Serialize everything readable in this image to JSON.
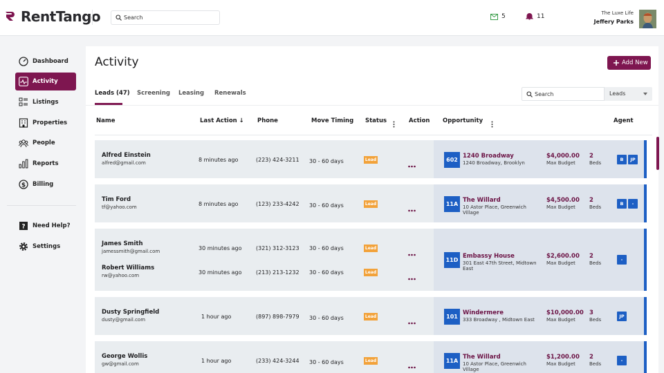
{
  "header": {
    "logo": "RentTango",
    "search_placeholder": "Search",
    "messages_count": 5,
    "notifications_count": 11,
    "company": "The Luxe Life",
    "user": "Jeffery Parks"
  },
  "sidebar": {
    "items": [
      "Dashboard",
      "Activity",
      "Listings",
      "Properties",
      "People",
      "Reports",
      "Billing"
    ],
    "help": "Need Help?",
    "settings": "Settings"
  },
  "page": {
    "title": "Activity",
    "add_button": "Add New"
  },
  "tabs": [
    "Leads (47)",
    "Screening",
    "Leasing",
    "Renewals"
  ],
  "filter": {
    "search_placeholder": "Search",
    "select": "Leads"
  },
  "table": {
    "columns": [
      "Name",
      "Last Action ↓",
      "Phone",
      "Move Timing",
      "Status",
      "Action",
      "Opportunity",
      "Agent"
    ],
    "rows": [
      {
        "leads": [
          {
            "name": "Alfred Einstein",
            "email": "alfred@gmail.com",
            "last_action": "8 minutes ago",
            "phone": "(223) 424-3211",
            "move_timing": "30 - 60 days",
            "status": "Lead"
          }
        ],
        "opportunity": {
          "unit": "602",
          "name": "1240 Broadway",
          "address": "1240 Broadway, Brooklyn",
          "budget": "$4,000.00",
          "budget_label": "Max Budget",
          "beds": "2",
          "beds_label": "Beds"
        },
        "agents": [
          "B",
          "JP"
        ]
      },
      {
        "leads": [
          {
            "name": "Tim Ford",
            "email": "tf@yahoo.com",
            "last_action": "8 minutes ago",
            "phone": "(123) 233-4242",
            "move_timing": "30 - 60 days",
            "status": "Lead"
          }
        ],
        "opportunity": {
          "unit": "11A",
          "name": "The Willard",
          "address": "10 Astor Place, Greenwich Village",
          "budget": "$4,500.00",
          "budget_label": "Max Budget",
          "beds": "2",
          "beds_label": "Beds"
        },
        "agents": [
          "B",
          "-"
        ]
      },
      {
        "leads": [
          {
            "name": "James Smith",
            "email": "jamessmith@gmail.com",
            "last_action": "30 minutes ago",
            "phone": "(321) 312-3123",
            "move_timing": "30 - 60 days",
            "status": "Lead"
          },
          {
            "name": "Robert Williams",
            "email": "rw@yahoo.com",
            "last_action": "30 minutes ago",
            "phone": "(213) 213-1232",
            "move_timing": "30 - 60 days",
            "status": "Lead"
          }
        ],
        "opportunity": {
          "unit": "11D",
          "name": "Embassy House",
          "address": "301 East 47th Street, Midtown East",
          "budget": "$2,600.00",
          "budget_label": "Max Budget",
          "beds": "2",
          "beds_label": "Beds"
        },
        "agents": [
          "-"
        ]
      },
      {
        "leads": [
          {
            "name": "Dusty Springfield",
            "email": "dusty@gmail.com",
            "last_action": "1 hour ago",
            "phone": "(897) 898-7979",
            "move_timing": "30 - 60 days",
            "status": "Lead"
          }
        ],
        "opportunity": {
          "unit": "101",
          "name": "Windermere",
          "address": "333 Broadway , Midtown East",
          "budget": "$10,000.00",
          "budget_label": "Max Budget",
          "beds": "3",
          "beds_label": "Beds"
        },
        "agents": [
          "JP"
        ]
      },
      {
        "leads": [
          {
            "name": "George Wollis",
            "email": "gw@gmail.com",
            "last_action": "1 hour ago",
            "phone": "(233) 424-3244",
            "move_timing": "30 - 60 days",
            "status": "Lead"
          }
        ],
        "opportunity": {
          "unit": "11A",
          "name": "The Willard",
          "address": "10 Astor Place, Greenwich Village",
          "budget": "$1,200.00",
          "budget_label": "Max Budget",
          "beds": "2",
          "beds_label": "Beds"
        },
        "agents": [
          "-"
        ]
      }
    ]
  }
}
